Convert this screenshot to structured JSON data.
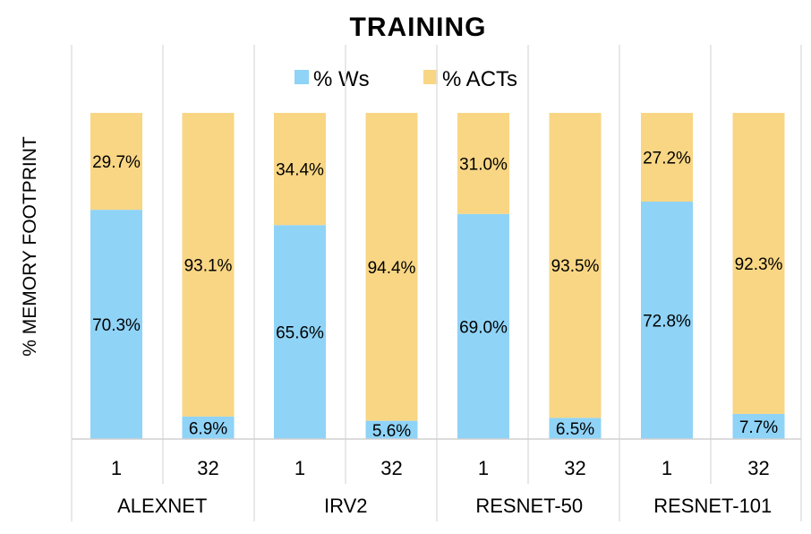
{
  "chart_data": {
    "type": "bar",
    "stacked": true,
    "percent": true,
    "title": "TRAINING",
    "ylabel": "% MEMORY FOOTPRINT",
    "xlabel": "",
    "ylim": [
      0,
      100
    ],
    "grid": false,
    "legend_position": "top",
    "groups": [
      "ALEXNET",
      "IRV2",
      "RESNET-50",
      "RESNET-101"
    ],
    "categories": [
      "1",
      "32",
      "1",
      "32",
      "1",
      "32",
      "1",
      "32"
    ],
    "series": [
      {
        "name": "% Ws",
        "color": "#8fd3f7",
        "values": [
          70.3,
          6.9,
          65.6,
          5.6,
          69.0,
          6.5,
          72.8,
          7.7
        ],
        "labels": [
          "70.3%",
          "6.9%",
          "65.6%",
          "5.6%",
          "69.0%",
          "6.5%",
          "72.8%",
          "7.7%"
        ]
      },
      {
        "name": "% ACTs",
        "color": "#f8d684",
        "values": [
          29.7,
          93.1,
          34.4,
          94.4,
          31.0,
          93.5,
          27.2,
          92.3
        ],
        "labels": [
          "29.7%",
          "93.1%",
          "34.4%",
          "94.4%",
          "31.0%",
          "93.5%",
          "27.2%",
          "92.3%"
        ]
      }
    ]
  }
}
